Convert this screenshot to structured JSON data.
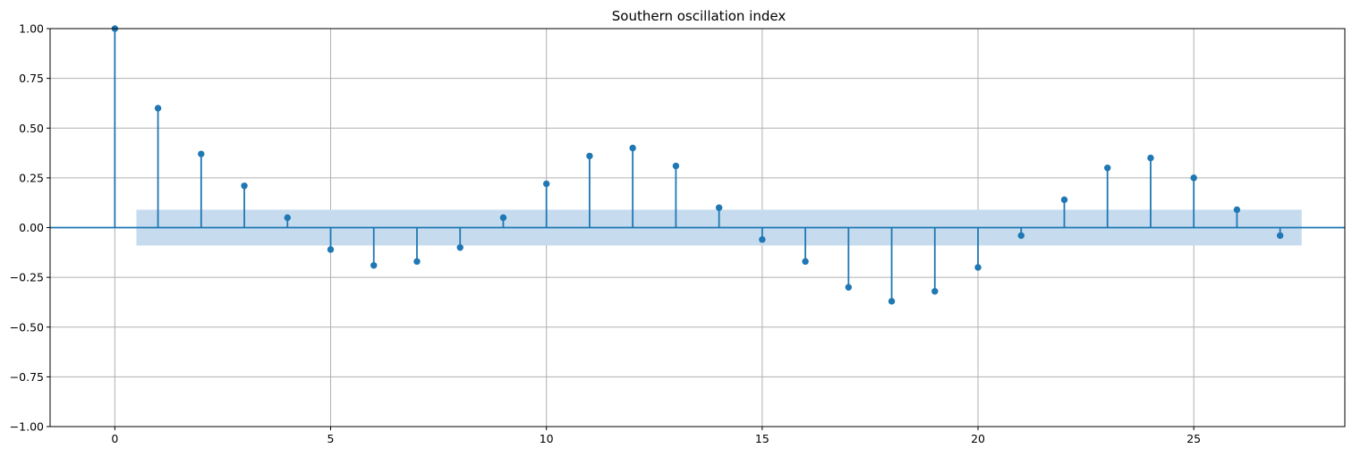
{
  "chart_data": {
    "type": "stem",
    "title": "Southern oscillation index",
    "xlabel": "",
    "ylabel": "",
    "xlim": [
      -1.5,
      28.5
    ],
    "ylim": [
      -1.0,
      1.0
    ],
    "xticks": [
      0,
      5,
      10,
      15,
      20,
      25
    ],
    "xtick_labels": [
      "0",
      "5",
      "10",
      "15",
      "20",
      "25"
    ],
    "yticks": [
      1.0,
      0.75,
      0.5,
      0.25,
      0.0,
      -0.25,
      -0.5,
      -0.75,
      -1.0
    ],
    "ytick_labels": [
      "1.00",
      "0.75",
      "0.50",
      "0.25",
      "0.00",
      "−0.25",
      "−0.50",
      "−0.75",
      "−1.00"
    ],
    "grid": true,
    "lags": [
      0,
      1,
      2,
      3,
      4,
      5,
      6,
      7,
      8,
      9,
      10,
      11,
      12,
      13,
      14,
      15,
      16,
      17,
      18,
      19,
      20,
      21,
      22,
      23,
      24,
      25,
      26,
      27
    ],
    "values": [
      1.0,
      0.6,
      0.37,
      0.21,
      0.05,
      -0.11,
      -0.19,
      -0.17,
      -0.1,
      0.05,
      0.22,
      0.36,
      0.4,
      0.31,
      0.1,
      -0.06,
      -0.17,
      -0.3,
      -0.37,
      -0.32,
      -0.2,
      -0.04,
      0.14,
      0.3,
      0.35,
      0.25,
      0.09,
      -0.04
    ],
    "confidence_band": {
      "x_range": [
        0.5,
        27.5
      ],
      "lower": -0.09,
      "upper": 0.09
    },
    "colors": {
      "stem": "#1f77b4",
      "band": "#c6dcee",
      "grid": "#b0b0b0"
    }
  }
}
